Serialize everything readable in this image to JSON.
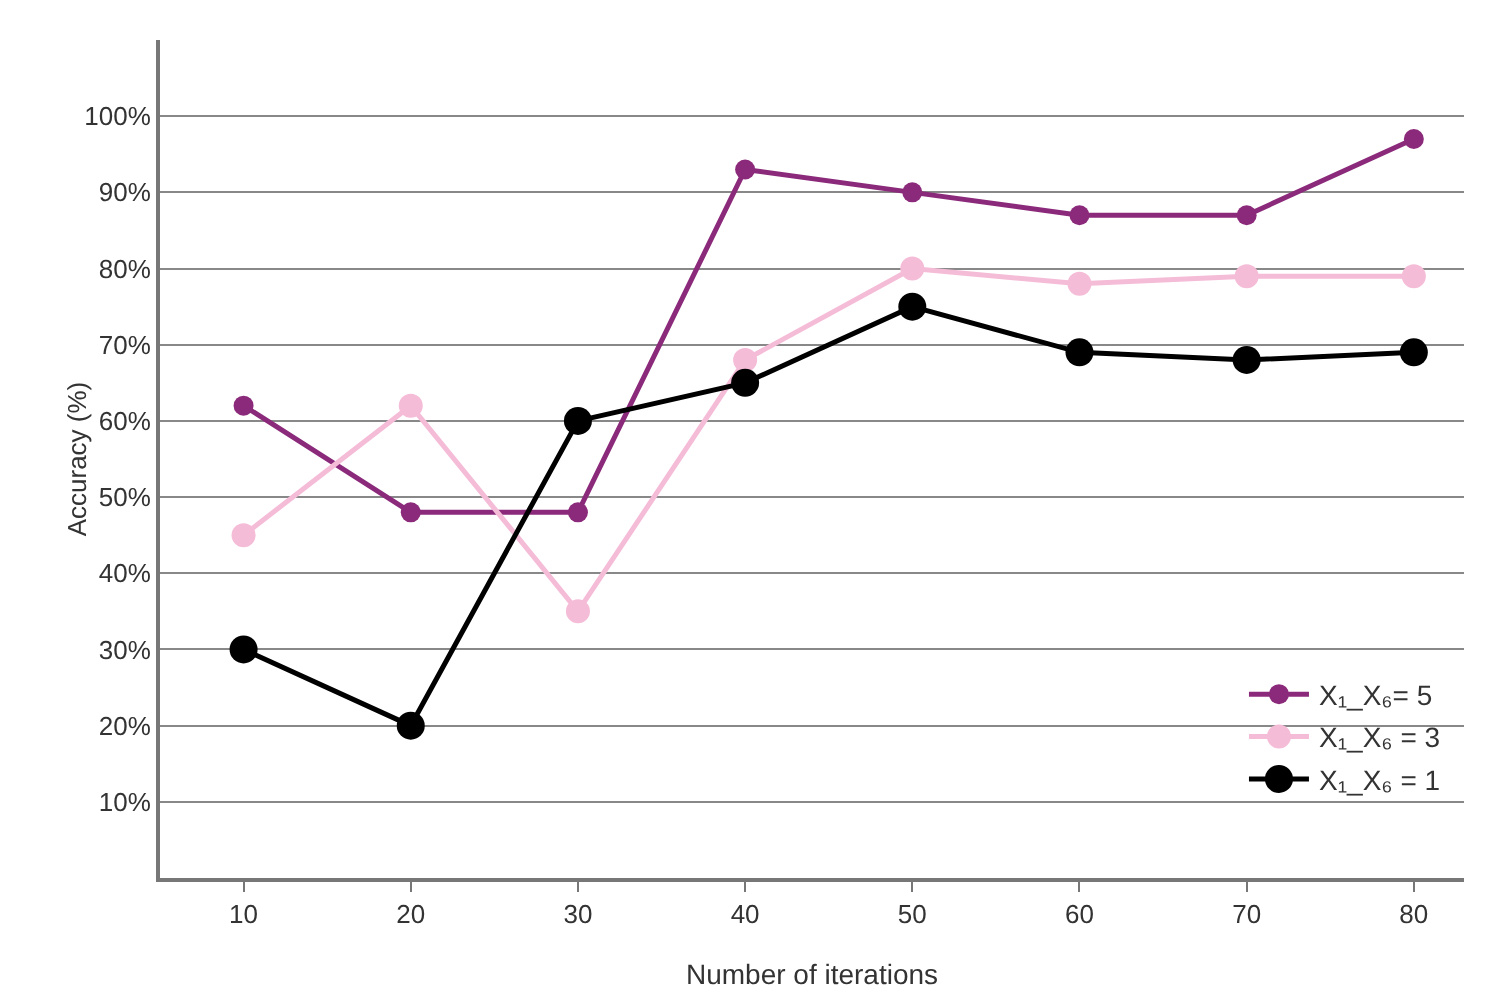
{
  "chart_data": {
    "type": "line",
    "xlabel": "Number of iterations",
    "ylabel": "Accuracy (%)",
    "x": [
      10,
      20,
      30,
      40,
      50,
      60,
      70,
      80
    ],
    "xlim": [
      5,
      83
    ],
    "xticks": [
      10,
      20,
      30,
      40,
      50,
      60,
      70,
      80
    ],
    "ylim": [
      0,
      110
    ],
    "yticks": [
      {
        "value": 10,
        "label": "10%"
      },
      {
        "value": 20,
        "label": "20%"
      },
      {
        "value": 30,
        "label": "30%"
      },
      {
        "value": 40,
        "label": "40%"
      },
      {
        "value": 50,
        "label": "50%"
      },
      {
        "value": 60,
        "label": "60%"
      },
      {
        "value": 70,
        "label": "70%"
      },
      {
        "value": 80,
        "label": "80%"
      },
      {
        "value": 90,
        "label": "90%"
      },
      {
        "value": 100,
        "label": "100%"
      }
    ],
    "grid": "y",
    "legend": "bottom right",
    "marker": "circle",
    "line_style": "solid",
    "series": [
      {
        "name": "X₁_X₆= 5",
        "color": "#8b2a7a",
        "values": [
          62,
          48,
          48,
          93,
          90,
          87,
          87,
          97
        ]
      },
      {
        "name": "X₁_X₆ = 3",
        "color": "#f5bcd8",
        "values": [
          45,
          62,
          35,
          68,
          80,
          78,
          79,
          79
        ]
      },
      {
        "name": "X₁_X₆ = 1",
        "color": "#000000",
        "values": [
          30,
          20,
          60,
          65,
          75,
          69,
          68,
          69
        ]
      }
    ]
  }
}
